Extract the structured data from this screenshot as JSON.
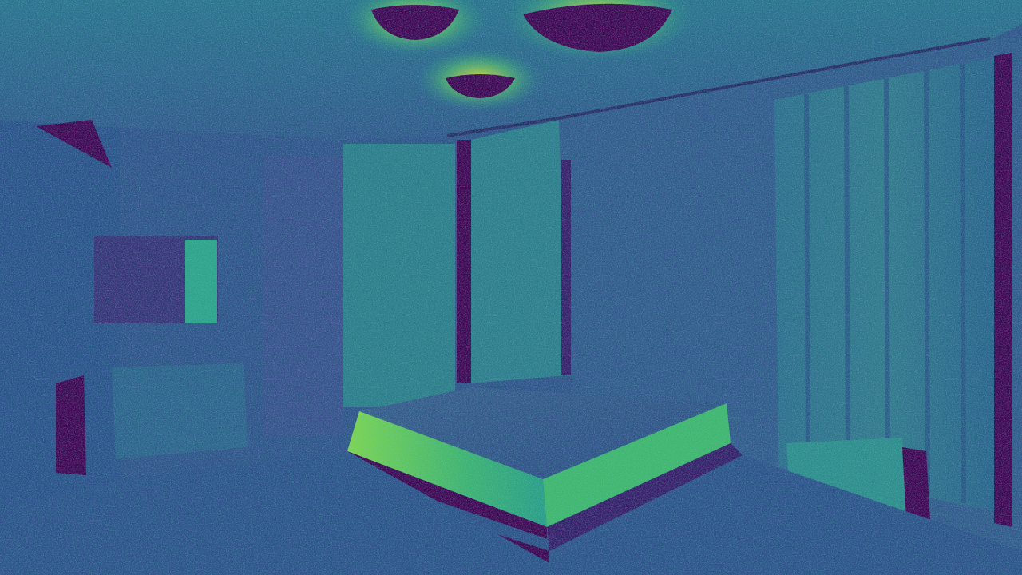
{
  "image": {
    "kind": "viridis-colormapped noisy render of a bedroom interior",
    "colormap": [
      "#440154",
      "#3b528b",
      "#21918c",
      "#5ec962",
      "#fde725"
    ],
    "objects": [
      "ceiling-lamp",
      "ceiling-lamp",
      "ceiling-lamp",
      "bed",
      "bedside-table",
      "curtains",
      "doorway",
      "wall-mirror",
      "cabinet",
      "chair"
    ]
  }
}
